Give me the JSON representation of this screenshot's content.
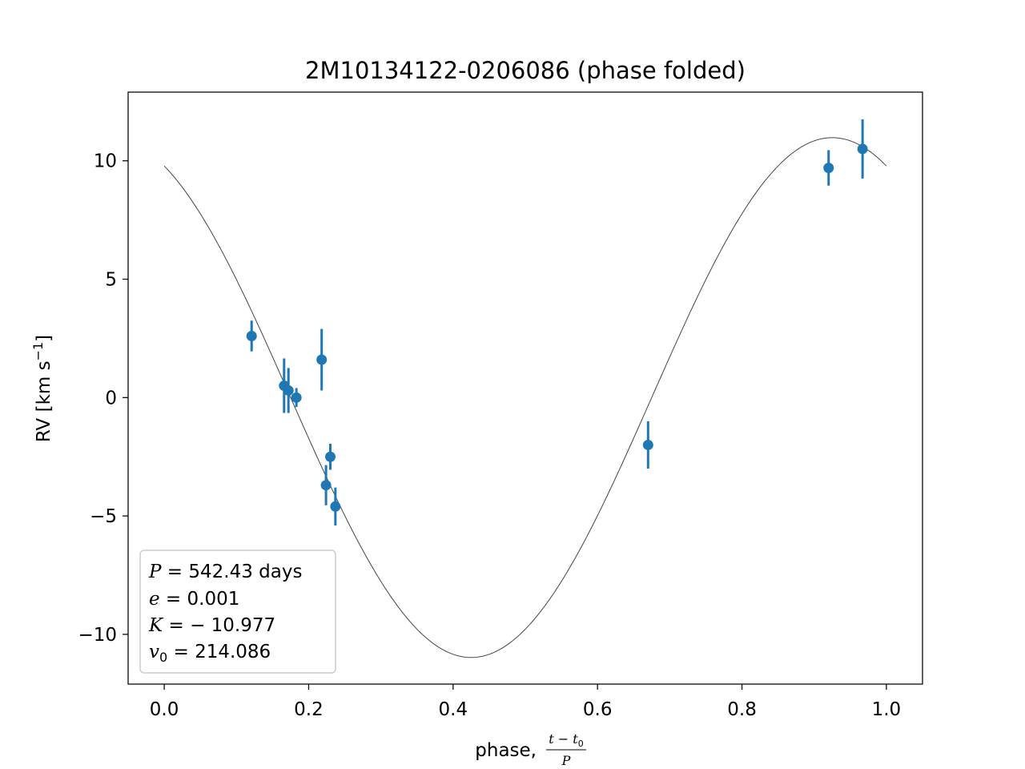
{
  "chart_data": {
    "type": "scatter",
    "title": "2M10134122-0206086 (phase folded)",
    "xlabel": "phase, ",
    "xlabel_fraction": {
      "numerator": "t − t",
      "numerator_sub": "0",
      "denominator": "P"
    },
    "ylabel": "RV [km s",
    "ylabel_sup": "−1",
    "ylabel_close": "]",
    "xlim": [
      -0.05,
      1.05
    ],
    "ylim": [
      -12.1,
      12.9
    ],
    "grid": false,
    "x_ticks": [
      {
        "value": 0.0,
        "label": "0.0"
      },
      {
        "value": 0.2,
        "label": "0.2"
      },
      {
        "value": 0.4,
        "label": "0.4"
      },
      {
        "value": 0.6,
        "label": "0.6"
      },
      {
        "value": 0.8,
        "label": "0.8"
      },
      {
        "value": 1.0,
        "label": "1.0"
      }
    ],
    "y_ticks": [
      {
        "value": 10,
        "label": "10"
      },
      {
        "value": 5,
        "label": "5"
      },
      {
        "value": 0,
        "label": "0"
      },
      {
        "value": -5,
        "label": "−5"
      },
      {
        "value": -10,
        "label": "−10"
      }
    ],
    "model": {
      "color": "#444444",
      "period": 1.0,
      "semi_amplitude": 10.977,
      "phase_of_max": 0.925
    },
    "series": [
      {
        "color": "#1f77b4",
        "points": [
          {
            "x": 0.121,
            "y": 2.6,
            "err": 0.65
          },
          {
            "x": 0.166,
            "y": 0.5,
            "err": 1.15
          },
          {
            "x": 0.172,
            "y": 0.3,
            "err": 0.95
          },
          {
            "x": 0.183,
            "y": 0.0,
            "err": 0.4
          },
          {
            "x": 0.218,
            "y": 1.6,
            "err": 1.3
          },
          {
            "x": 0.224,
            "y": -3.7,
            "err": 0.85
          },
          {
            "x": 0.23,
            "y": -2.5,
            "err": 0.55
          },
          {
            "x": 0.237,
            "y": -4.6,
            "err": 0.8
          },
          {
            "x": 0.67,
            "y": -2.0,
            "err": 1.0
          },
          {
            "x": 0.92,
            "y": 9.7,
            "err": 0.75
          },
          {
            "x": 0.967,
            "y": 10.5,
            "err": 1.25
          }
        ]
      }
    ],
    "legend": {
      "placement": "lower-left",
      "lines": [
        {
          "symbol": "P",
          "rest": " = 542.43 days"
        },
        {
          "symbol": "e",
          "rest": " = 0.001"
        },
        {
          "symbol": "K",
          "rest": " = − 10.977"
        },
        {
          "symbol": "v",
          "sub": "0",
          "rest": " = 214.086"
        }
      ]
    }
  }
}
